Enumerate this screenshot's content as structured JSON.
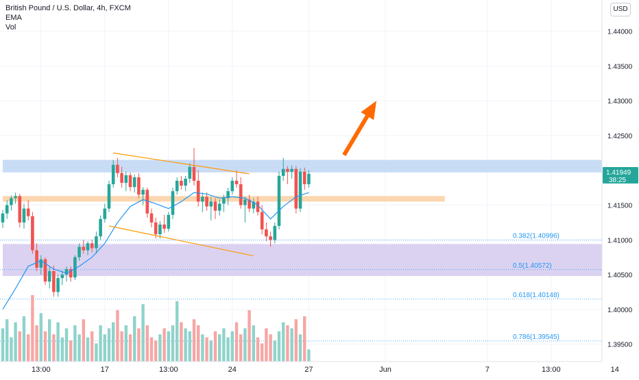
{
  "legend": {
    "title": "British Pound / U.S. Dollar, 4h, FXCM",
    "ema": "EMA",
    "vol": "Vol"
  },
  "currency": "USD",
  "price_badge": {
    "price": "1.41949",
    "countdown": "38:25"
  },
  "colors": {
    "up": "#26a69a",
    "down": "#ef5350",
    "vol_up": "#8fd3cb",
    "vol_down": "#f6a6a4",
    "ema": "#2196f3",
    "trendline": "#ff9800",
    "arrow": "#ff6a00",
    "blue_zone": "#c2d8f5",
    "orange_zone": "#fbd2a6",
    "purple_zone": "#d7cdf0",
    "fib": "#2196f3",
    "grid": "#f0f3fa",
    "axis_text": "#131722"
  },
  "chart_data": {
    "type": "candlestick",
    "symbol": "British Pound / U.S. Dollar",
    "interval": "4h",
    "source": "FXCM",
    "y_ticks": [
      1.395,
      1.4,
      1.405,
      1.41,
      1.415,
      1.42,
      1.425,
      1.43,
      1.435,
      1.44
    ],
    "y_tick_labels": [
      "1.39500",
      "1.40000",
      "1.40500",
      "1.41000",
      "1.41500",
      "1.42000",
      "1.42500",
      "1.43000",
      "1.43500",
      "1.44000"
    ],
    "ylim": [
      1.3925,
      1.4445
    ],
    "x_ticks": [
      {
        "bar": 9,
        "label": "13:00"
      },
      {
        "bar": 24,
        "label": "17"
      },
      {
        "bar": 39,
        "label": "13:00"
      },
      {
        "bar": 54,
        "label": "24"
      },
      {
        "bar": 72,
        "label": "27"
      },
      {
        "bar": 90,
        "label": "Jun"
      },
      {
        "bar": 114,
        "label": "7"
      },
      {
        "bar": 129,
        "label": "13:00"
      },
      {
        "bar": 144,
        "label": "14"
      },
      {
        "bar": 159,
        "label": "13:00"
      }
    ],
    "xlim": [
      0,
      160
    ],
    "candles": [
      [
        1.4125,
        1.4143,
        1.4117,
        1.4138
      ],
      [
        1.4138,
        1.4157,
        1.413,
        1.415
      ],
      [
        1.415,
        1.4164,
        1.4142,
        1.416
      ],
      [
        1.416,
        1.4168,
        1.4152,
        1.4163
      ],
      [
        1.4163,
        1.4166,
        1.4118,
        1.4125
      ],
      [
        1.4125,
        1.4152,
        1.4116,
        1.4145
      ],
      [
        1.4145,
        1.4157,
        1.4128,
        1.4134
      ],
      [
        1.4134,
        1.414,
        1.408,
        1.4085
      ],
      [
        1.4085,
        1.4095,
        1.4055,
        1.406
      ],
      [
        1.406,
        1.4078,
        1.405,
        1.4072
      ],
      [
        1.4072,
        1.4075,
        1.4035,
        1.404
      ],
      [
        1.404,
        1.4062,
        1.403,
        1.4055
      ],
      [
        1.4055,
        1.4063,
        1.4018,
        1.4025
      ],
      [
        1.4025,
        1.405,
        1.4018,
        1.4045
      ],
      [
        1.4045,
        1.4056,
        1.4035,
        1.405
      ],
      [
        1.405,
        1.4062,
        1.404,
        1.4058
      ],
      [
        1.4058,
        1.4062,
        1.404,
        1.4046
      ],
      [
        1.4046,
        1.4078,
        1.4042,
        1.4075
      ],
      [
        1.4075,
        1.4095,
        1.407,
        1.409
      ],
      [
        1.409,
        1.41,
        1.408,
        1.4085
      ],
      [
        1.4085,
        1.4098,
        1.4078,
        1.4095
      ],
      [
        1.4095,
        1.41,
        1.4082,
        1.4088
      ],
      [
        1.4088,
        1.4112,
        1.408,
        1.4105
      ],
      [
        1.4105,
        1.4135,
        1.41,
        1.413
      ],
      [
        1.413,
        1.4152,
        1.4125,
        1.4145
      ],
      [
        1.4145,
        1.4185,
        1.414,
        1.418
      ],
      [
        1.418,
        1.4215,
        1.4175,
        1.4208
      ],
      [
        1.4208,
        1.4218,
        1.419,
        1.4196
      ],
      [
        1.4196,
        1.4205,
        1.4175,
        1.4182
      ],
      [
        1.4182,
        1.4198,
        1.417,
        1.4193
      ],
      [
        1.4193,
        1.4197,
        1.417,
        1.4176
      ],
      [
        1.4176,
        1.4194,
        1.4168,
        1.419
      ],
      [
        1.419,
        1.4196,
        1.416,
        1.4165
      ],
      [
        1.4165,
        1.4176,
        1.415,
        1.4172
      ],
      [
        1.4172,
        1.4175,
        1.4132,
        1.4138
      ],
      [
        1.4138,
        1.4145,
        1.4118,
        1.4125
      ],
      [
        1.4125,
        1.4132,
        1.4102,
        1.4108
      ],
      [
        1.4108,
        1.4127,
        1.4102,
        1.4122
      ],
      [
        1.4122,
        1.4136,
        1.411,
        1.4116
      ],
      [
        1.4116,
        1.414,
        1.4112,
        1.4136
      ],
      [
        1.4136,
        1.4175,
        1.413,
        1.417
      ],
      [
        1.417,
        1.419,
        1.4165,
        1.4185
      ],
      [
        1.4185,
        1.4192,
        1.4172,
        1.4178
      ],
      [
        1.4178,
        1.4192,
        1.417,
        1.4188
      ],
      [
        1.4188,
        1.421,
        1.4182,
        1.4205
      ],
      [
        1.4205,
        1.4232,
        1.4178,
        1.4185
      ],
      [
        1.4185,
        1.42,
        1.4148,
        1.4155
      ],
      [
        1.4155,
        1.4168,
        1.414,
        1.4162
      ],
      [
        1.4162,
        1.4168,
        1.4142,
        1.4148
      ],
      [
        1.4148,
        1.4162,
        1.4128,
        1.4155
      ],
      [
        1.4155,
        1.416,
        1.413,
        1.4142
      ],
      [
        1.4142,
        1.4158,
        1.4135,
        1.4152
      ],
      [
        1.4152,
        1.4165,
        1.414,
        1.416
      ],
      [
        1.416,
        1.4175,
        1.415,
        1.417
      ],
      [
        1.417,
        1.419,
        1.4165,
        1.4185
      ],
      [
        1.4185,
        1.42,
        1.4175,
        1.418
      ],
      [
        1.418,
        1.419,
        1.4145,
        1.415
      ],
      [
        1.415,
        1.4162,
        1.4125,
        1.4158
      ],
      [
        1.4158,
        1.4165,
        1.414,
        1.4145
      ],
      [
        1.4145,
        1.416,
        1.4138,
        1.4155
      ],
      [
        1.4155,
        1.4162,
        1.4135,
        1.414
      ],
      [
        1.414,
        1.415,
        1.4108,
        1.4115
      ],
      [
        1.4115,
        1.4125,
        1.4098,
        1.4105
      ],
      [
        1.4105,
        1.4112,
        1.409,
        1.41
      ],
      [
        1.41,
        1.4125,
        1.4095,
        1.412
      ],
      [
        1.412,
        1.4198,
        1.4115,
        1.4192
      ],
      [
        1.4192,
        1.4218,
        1.4185,
        1.4202
      ],
      [
        1.4202,
        1.4206,
        1.418,
        1.4198
      ],
      [
        1.4198,
        1.4207,
        1.4188,
        1.4202
      ],
      [
        1.4202,
        1.4206,
        1.4138,
        1.4145
      ],
      [
        1.4145,
        1.4203,
        1.414,
        1.4198
      ],
      [
        1.4198,
        1.4204,
        1.4172,
        1.418
      ],
      [
        1.418,
        1.42,
        1.4175,
        1.4195
      ]
    ],
    "volumes": [
      0.55,
      0.7,
      0.4,
      0.65,
      0.5,
      0.75,
      0.45,
      1.1,
      0.6,
      0.8,
      0.5,
      0.7,
      0.45,
      0.65,
      0.4,
      0.55,
      0.35,
      0.6,
      0.45,
      0.7,
      0.4,
      0.5,
      0.3,
      0.6,
      0.45,
      0.55,
      0.65,
      0.85,
      0.5,
      0.6,
      0.45,
      0.75,
      0.55,
      0.95,
      0.6,
      0.4,
      0.35,
      0.45,
      0.55,
      0.5,
      0.6,
      1.0,
      0.65,
      0.55,
      0.5,
      0.7,
      0.6,
      0.45,
      0.4,
      0.35,
      0.5,
      0.45,
      0.55,
      0.4,
      0.5,
      0.65,
      0.45,
      0.55,
      0.85,
      0.6,
      0.4,
      0.3,
      0.55,
      0.45,
      0.35,
      0.5,
      0.65,
      0.6,
      0.55,
      0.7,
      0.45,
      0.75,
      0.2
    ],
    "ema": [
      [
        0,
        1.4
      ],
      [
        3,
        1.403
      ],
      [
        6,
        1.4062
      ],
      [
        9,
        1.407
      ],
      [
        12,
        1.4058
      ],
      [
        15,
        1.4052
      ],
      [
        18,
        1.4062
      ],
      [
        21,
        1.4075
      ],
      [
        24,
        1.4095
      ],
      [
        27,
        1.4125
      ],
      [
        30,
        1.4148
      ],
      [
        33,
        1.4158
      ],
      [
        36,
        1.4152
      ],
      [
        39,
        1.4145
      ],
      [
        42,
        1.4155
      ],
      [
        45,
        1.4168
      ],
      [
        48,
        1.4166
      ],
      [
        51,
        1.416
      ],
      [
        54,
        1.4162
      ],
      [
        57,
        1.416
      ],
      [
        60,
        1.415
      ],
      [
        63,
        1.413
      ],
      [
        66,
        1.4148
      ],
      [
        69,
        1.4162
      ],
      [
        72,
        1.4168
      ]
    ],
    "trendlines": [
      {
        "from": [
          26,
          1.4225
        ],
        "to": [
          58,
          1.4195
        ]
      },
      {
        "from": [
          25,
          1.412
        ],
        "to": [
          59,
          1.4077
        ]
      }
    ],
    "zones": [
      {
        "name": "blue",
        "y1": 1.4197,
        "y2": 1.4215,
        "x1": 0,
        "x2": "axis"
      },
      {
        "name": "orange",
        "y1": 1.4155,
        "y2": 1.4163,
        "x1": 0,
        "x2": 104
      },
      {
        "name": "purple",
        "y1": 1.4048,
        "y2": 1.4094,
        "x1": 0,
        "x2": "axis"
      }
    ],
    "fibs": [
      {
        "level": 1.40996,
        "label": "0.382(1.40996)"
      },
      {
        "level": 1.40572,
        "label": "0.5(1.40572)"
      },
      {
        "level": 1.40148,
        "label": "0.618(1.40148)"
      },
      {
        "level": 1.39545,
        "label": "0.786(1.39545)"
      }
    ],
    "arrow": {
      "from": [
        69,
        1.4222
      ],
      "to": [
        75,
        1.43
      ]
    },
    "last_price": 1.41949
  }
}
